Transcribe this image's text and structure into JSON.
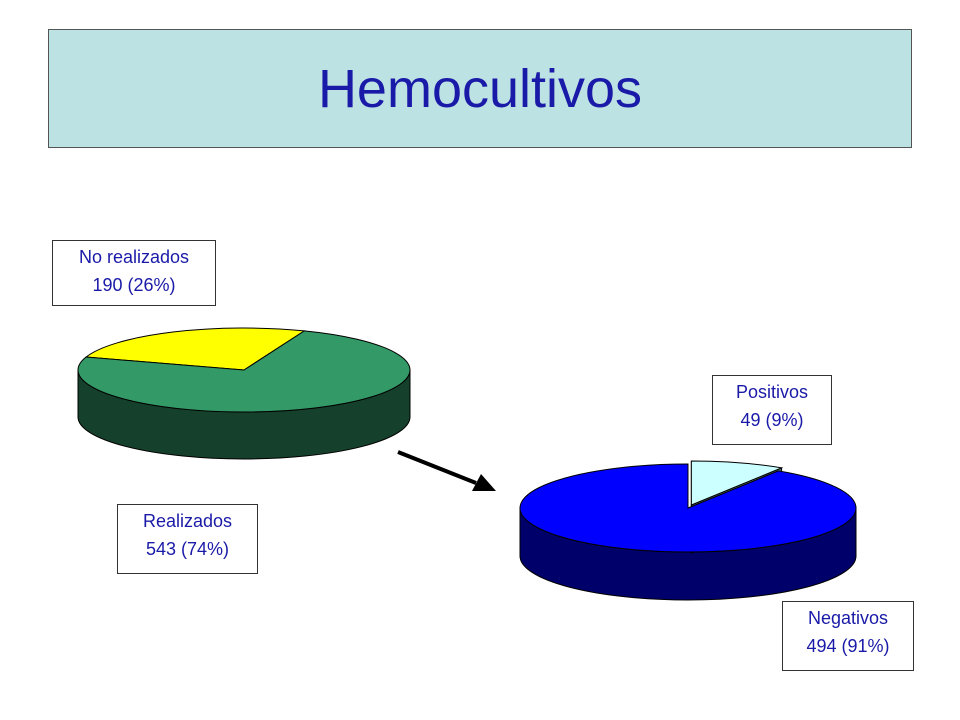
{
  "title": "Hemocultivos",
  "chart_data": [
    {
      "type": "pie",
      "style": "3d",
      "slices": [
        {
          "label": "No realizados",
          "value": 190,
          "percent_label": "190 (26%)",
          "color": "#ffff00"
        },
        {
          "label": "Realizados",
          "value": 543,
          "percent_label": "543 (74%)",
          "color": "#339966"
        }
      ]
    },
    {
      "type": "pie",
      "style": "3d",
      "slices": [
        {
          "label": "Positivos",
          "value": 49,
          "percent_label": "49 (9%)",
          "color": "#ccffff",
          "exploded": true
        },
        {
          "label": "Negativos",
          "value": 494,
          "percent_label": "494 (91%)",
          "color": "#0000ff"
        }
      ]
    }
  ],
  "colors": {
    "title_background": "#bde2e3",
    "title_text": "#1a1aa8",
    "label_text": "#1a1aa8",
    "arrow": "#000000"
  }
}
